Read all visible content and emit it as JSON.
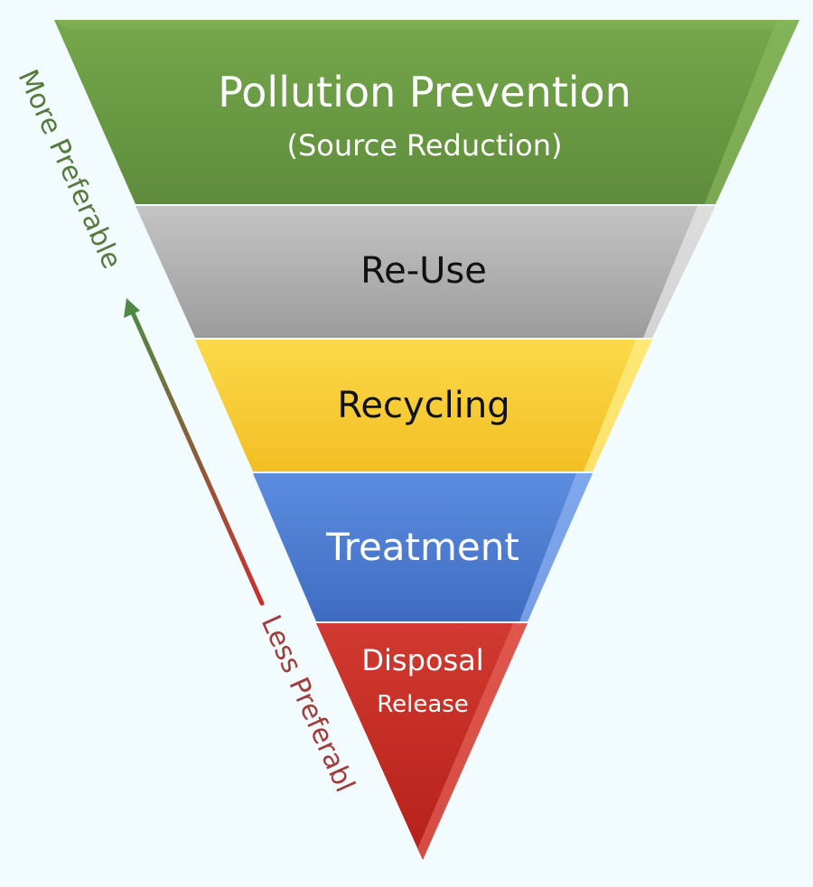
{
  "colors": {
    "background": "#f2fbfd",
    "tier_green": "#6b9a44",
    "tier_gray": "#a8a8a8",
    "tier_yellow": "#f5cd3a",
    "tier_blue": "#4f7fd2",
    "tier_red": "#c42a23",
    "more_label": "#557a3d",
    "less_label": "#a33a3a"
  },
  "tiers": [
    {
      "title": "Pollution Prevention",
      "subtitle": "(Source Reduction)"
    },
    {
      "title": "Re-Use"
    },
    {
      "title": "Recycling"
    },
    {
      "title": "Treatment"
    },
    {
      "title": "Disposal",
      "subtitle": "Release"
    }
  ],
  "axis": {
    "more_label": "More Preferable",
    "less_label": "Less Preferabl"
  }
}
